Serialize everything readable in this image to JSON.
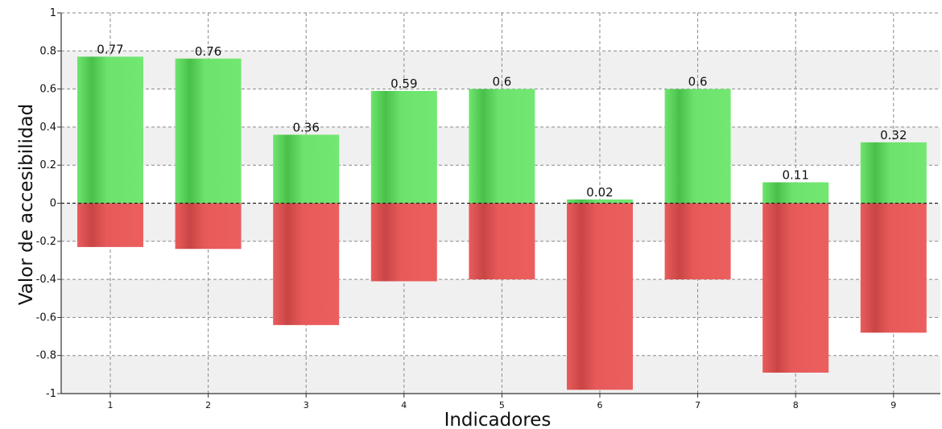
{
  "chart_data": {
    "type": "bar",
    "xlabel": "Indicadores",
    "ylabel": "Valor de accesibilidad",
    "ylim": [
      -1,
      1
    ],
    "yticks": [
      "-1",
      "-0.8",
      "-0.6",
      "-0.4",
      "-0.2",
      "0",
      "0.2",
      "0.4",
      "0.6",
      "0.8",
      "1"
    ],
    "categories": [
      "1",
      "2",
      "3",
      "4",
      "5",
      "6",
      "7",
      "8",
      "9"
    ],
    "series": [
      {
        "values": [
          0.77,
          0.76,
          0.36,
          0.59,
          0.6,
          0.02,
          0.6,
          0.11,
          0.32
        ],
        "color": "#6ce36c"
      },
      {
        "values": [
          -0.23,
          -0.24,
          -0.64,
          -0.41,
          -0.4,
          -0.98,
          -0.4,
          -0.89,
          -0.68
        ],
        "color": "#e85a5a"
      }
    ],
    "data_labels": [
      "0.77",
      "0.76",
      "0.36",
      "0.59",
      "0.6",
      "0.02",
      "0.6",
      "0.11",
      "0.32"
    ],
    "grid": true,
    "legend": "none"
  }
}
